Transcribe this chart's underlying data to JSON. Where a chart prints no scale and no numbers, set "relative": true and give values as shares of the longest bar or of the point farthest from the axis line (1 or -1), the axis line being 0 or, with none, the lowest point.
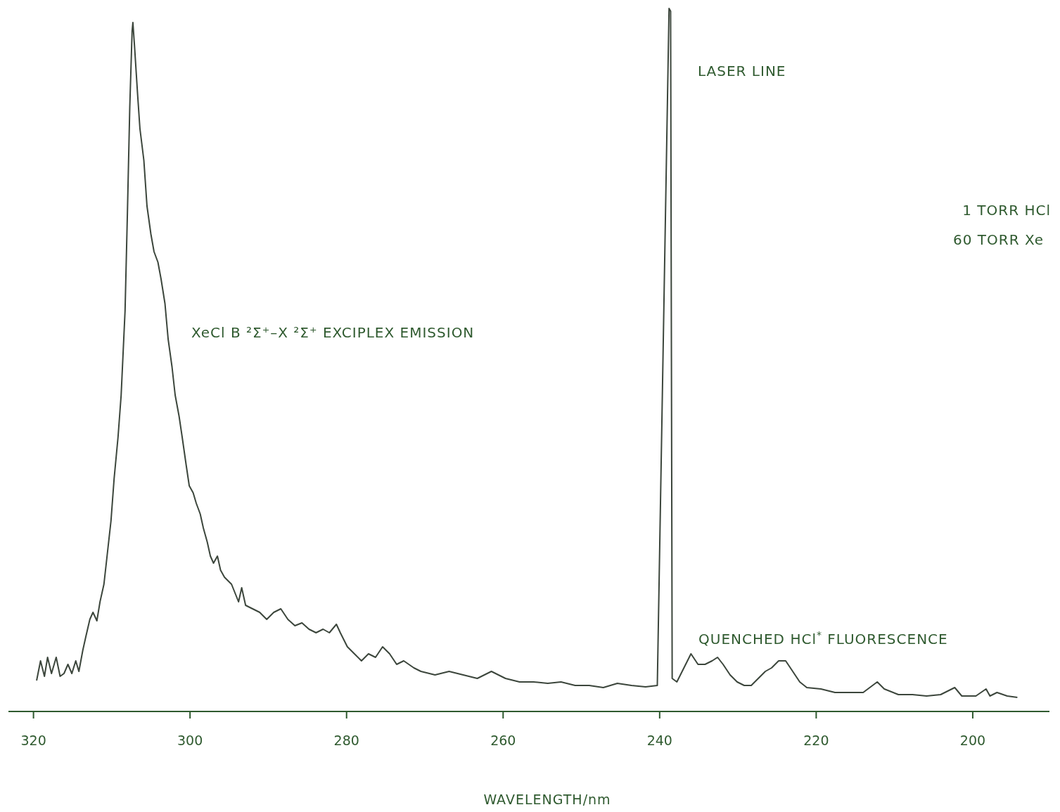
{
  "chart_data": {
    "type": "line",
    "relative": true,
    "xlabel": "WAVELENGTH/nm",
    "xlim": [
      323.2,
      190.2
    ],
    "xticks": [
      320,
      300,
      280,
      260,
      240,
      220,
      200
    ],
    "annotations": [
      "LASER LINE",
      "XeCl  B ²Σ⁺–X ²Σ⁺  EXCIPLEX EMISSION",
      "QUENCHED HCl$^{*}$ FLUORESCENCE",
      "1 TORR HCl",
      "60 TORR Xe"
    ],
    "series": [
      {
        "color": "#3c463c",
        "x": [
          319.6,
          319.1,
          318.6,
          318.2,
          317.7,
          317.1,
          316.6,
          316.1,
          315.6,
          315.1,
          314.6,
          314.2,
          313.7,
          313.3,
          312.8,
          312.4,
          311.9,
          311.5,
          311.0,
          310.6,
          310.1,
          309.7,
          309.2,
          308.8,
          308.3,
          308.0,
          307.7,
          307.4,
          307.3,
          307.1,
          306.7,
          306.4,
          305.9,
          305.5,
          305.0,
          304.6,
          304.1,
          303.7,
          303.2,
          302.8,
          302.3,
          301.9,
          301.4,
          301.0,
          300.5,
          300.1,
          299.6,
          299.2,
          298.7,
          298.3,
          297.8,
          297.4,
          297.0,
          296.5,
          296.1,
          295.6,
          294.7,
          293.8,
          293.4,
          292.9,
          292.0,
          291.1,
          290.2,
          289.3,
          288.4,
          287.5,
          286.6,
          285.7,
          284.8,
          283.9,
          283.0,
          282.2,
          281.3,
          280.8,
          279.9,
          279.0,
          278.1,
          277.2,
          276.3,
          275.4,
          274.5,
          273.6,
          272.7,
          271.4,
          270.5,
          268.7,
          266.9,
          265.1,
          263.3,
          261.5,
          259.7,
          257.9,
          256.1,
          254.3,
          252.6,
          250.8,
          249.0,
          247.2,
          245.4,
          243.6,
          241.8,
          240.3,
          238.8,
          238.6,
          238.4,
          237.8,
          236.9,
          236.0,
          235.1,
          234.2,
          233.3,
          232.6,
          231.9,
          231.0,
          230.1,
          229.2,
          228.3,
          227.4,
          226.5,
          225.7,
          224.8,
          223.9,
          223.0,
          222.1,
          221.2,
          219.4,
          217.6,
          215.8,
          214.0,
          212.2,
          211.3,
          209.5,
          207.7,
          205.9,
          204.1,
          202.3,
          201.4,
          199.6,
          198.3,
          197.8,
          196.9,
          195.6,
          194.3
        ],
        "values": [
          0.044,
          0.072,
          0.05,
          0.077,
          0.054,
          0.077,
          0.05,
          0.054,
          0.067,
          0.054,
          0.072,
          0.057,
          0.087,
          0.107,
          0.131,
          0.141,
          0.129,
          0.156,
          0.181,
          0.221,
          0.271,
          0.331,
          0.39,
          0.45,
          0.57,
          0.709,
          0.859,
          0.968,
          0.98,
          0.948,
          0.878,
          0.829,
          0.784,
          0.719,
          0.679,
          0.654,
          0.639,
          0.615,
          0.58,
          0.53,
          0.49,
          0.45,
          0.42,
          0.39,
          0.351,
          0.321,
          0.311,
          0.296,
          0.281,
          0.261,
          0.241,
          0.221,
          0.211,
          0.221,
          0.201,
          0.191,
          0.181,
          0.156,
          0.176,
          0.151,
          0.146,
          0.141,
          0.131,
          0.141,
          0.146,
          0.131,
          0.122,
          0.126,
          0.117,
          0.112,
          0.117,
          0.112,
          0.124,
          0.112,
          0.092,
          0.082,
          0.072,
          0.082,
          0.077,
          0.092,
          0.082,
          0.067,
          0.072,
          0.062,
          0.057,
          0.052,
          0.057,
          0.052,
          0.047,
          0.057,
          0.047,
          0.042,
          0.042,
          0.04,
          0.042,
          0.037,
          0.037,
          0.034,
          0.04,
          0.037,
          0.035,
          0.037,
          1.0,
          0.996,
          0.047,
          0.042,
          0.062,
          0.082,
          0.067,
          0.067,
          0.072,
          0.077,
          0.067,
          0.052,
          0.042,
          0.037,
          0.037,
          0.047,
          0.057,
          0.062,
          0.072,
          0.072,
          0.057,
          0.042,
          0.034,
          0.032,
          0.027,
          0.027,
          0.027,
          0.042,
          0.032,
          0.024,
          0.024,
          0.022,
          0.024,
          0.034,
          0.022,
          0.022,
          0.032,
          0.022,
          0.027,
          0.022,
          0.02
        ]
      }
    ]
  }
}
